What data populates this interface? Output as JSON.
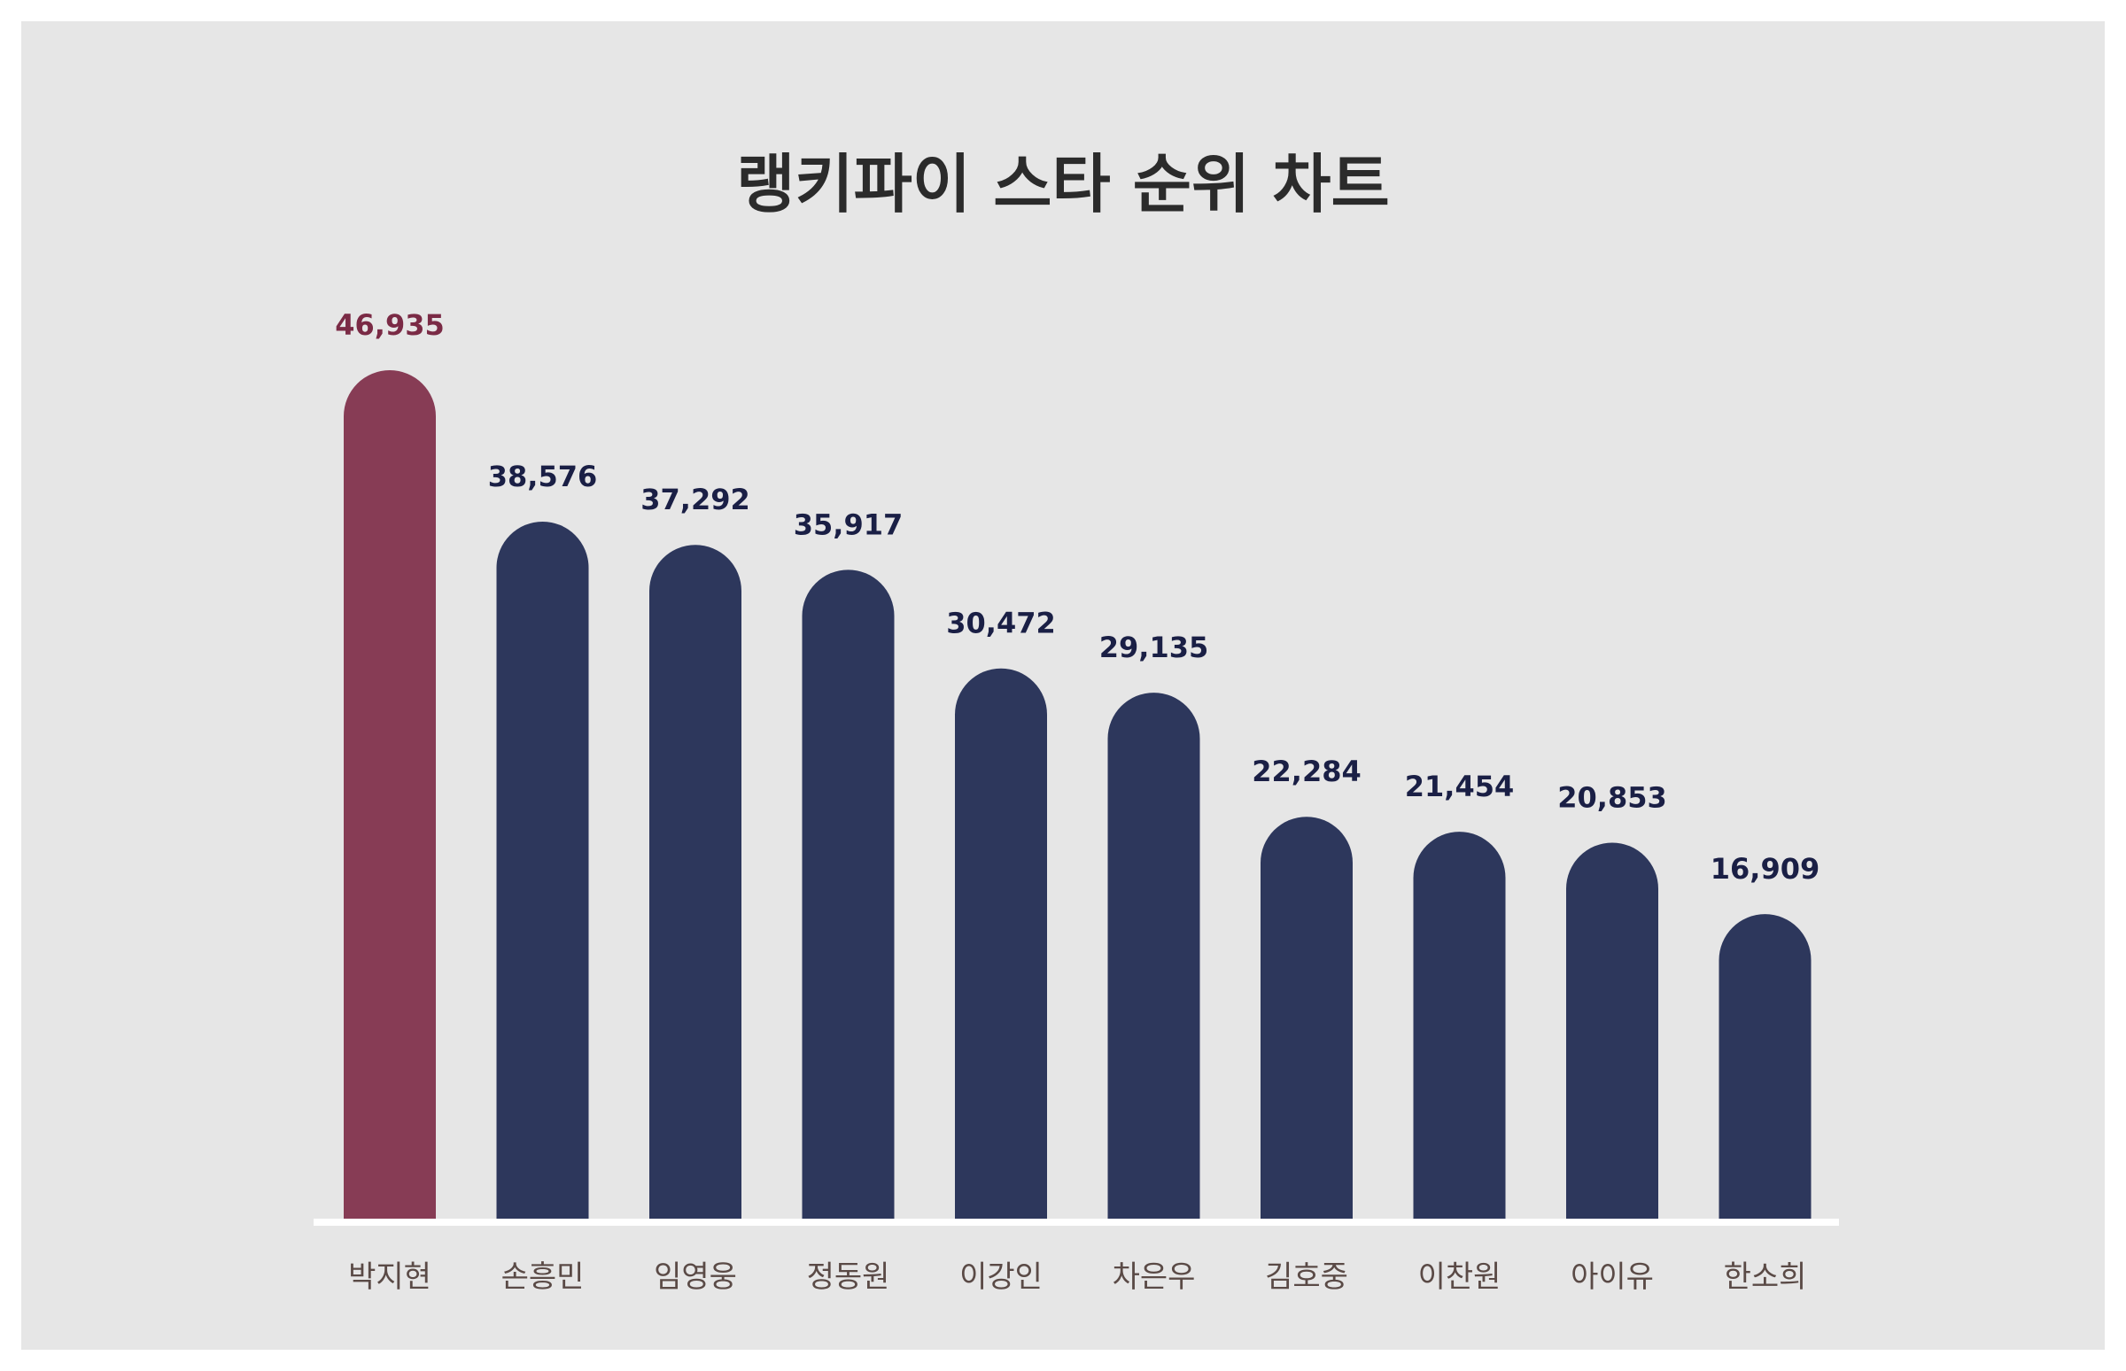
{
  "chart_data": {
    "type": "bar",
    "title": "랭키파이 스타 순위 차트",
    "categories": [
      "박지현",
      "손흥민",
      "임영웅",
      "정동원",
      "이강인",
      "차은우",
      "김호중",
      "이찬원",
      "아이유",
      "한소희"
    ],
    "values": [
      46935,
      38576,
      37292,
      35917,
      30472,
      29135,
      22284,
      21454,
      20853,
      16909
    ],
    "value_labels": [
      "46,935",
      "38,576",
      "37,292",
      "35,917",
      "30,472",
      "29,135",
      "22,284",
      "21,454",
      "20,853",
      "16,909"
    ],
    "highlight_index": 0,
    "ylim": [
      0,
      50000
    ],
    "grid": false,
    "legend": "none",
    "colors": {
      "highlight_bar": "#873c55",
      "highlight_label": "#7a2a45",
      "bar": "#2d375c",
      "label": "#1a1f45",
      "category_text": "#5a4a46",
      "baseline": "#ffffff",
      "background": "#e6e6e6"
    }
  }
}
